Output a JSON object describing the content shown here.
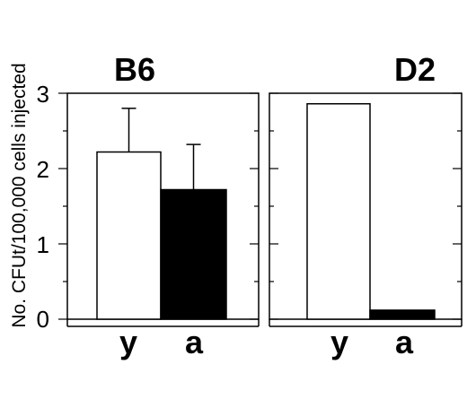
{
  "chart_data": [
    {
      "type": "bar",
      "title": "B6",
      "categories": [
        "y",
        "a"
      ],
      "values": [
        2.22,
        1.72
      ],
      "errors": [
        0.58,
        0.6
      ],
      "ylabel": "No. CFUt/100,000 cells injected",
      "ylim": [
        0,
        3
      ],
      "yticks": [
        "0",
        "1",
        "2",
        "3"
      ],
      "bar_colors": [
        "#ffffff",
        "#000000"
      ]
    },
    {
      "type": "bar",
      "title": "D2",
      "categories": [
        "y",
        "a"
      ],
      "values": [
        2.86,
        0.12
      ],
      "ylim": [
        0,
        3
      ],
      "bar_colors": [
        "#ffffff",
        "#000000"
      ]
    }
  ]
}
